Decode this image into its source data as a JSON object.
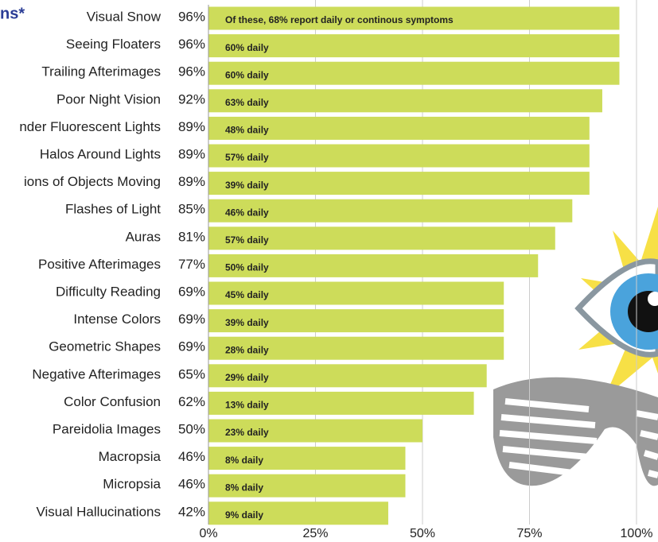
{
  "chart_data": {
    "type": "bar",
    "orientation": "horizontal",
    "title": "ns*",
    "categories": [
      "Visual Snow",
      "Seeing Floaters",
      "Trailing Afterimages",
      "Poor Night Vision",
      "nder Fluorescent Lights",
      "Halos Around Lights",
      "ions of Objects Moving",
      "Flashes of Light",
      "Auras",
      "Positive Afterimages",
      "Difficulty Reading",
      "Intense Colors",
      "Geometric Shapes",
      "Negative Afterimages",
      "Color Confusion",
      "Pareidolia Images",
      "Macropsia",
      "Micropsia",
      "Visual Hallucinations"
    ],
    "values": [
      96,
      96,
      96,
      92,
      89,
      89,
      89,
      85,
      81,
      77,
      69,
      69,
      69,
      65,
      62,
      50,
      46,
      46,
      42
    ],
    "value_labels": [
      "96%",
      "96%",
      "96%",
      "92%",
      "89%",
      "89%",
      "89%",
      "85%",
      "81%",
      "77%",
      "69%",
      "69%",
      "69%",
      "65%",
      "62%",
      "50%",
      "46%",
      "46%",
      "42%"
    ],
    "daily_labels": [
      "Of these, 68% report daily or continous symptoms",
      "60% daily",
      "60% daily",
      "63% daily",
      "48% daily",
      "57% daily",
      "39% daily",
      "46% daily",
      "57% daily",
      "50% daily",
      "45% daily",
      "39% daily",
      "28% daily",
      "29% daily",
      "13% daily",
      "23% daily",
      "8% daily",
      "8% daily",
      "9% daily"
    ],
    "color": "#cddc5a",
    "xlim": [
      0,
      100
    ],
    "xticks": [
      {
        "value": 0,
        "label": "0%"
      },
      {
        "value": 25,
        "label": "25%"
      },
      {
        "value": 50,
        "label": "50%"
      },
      {
        "value": 75,
        "label": "75%"
      },
      {
        "value": 100,
        "label": "100%"
      }
    ],
    "grid": true
  }
}
